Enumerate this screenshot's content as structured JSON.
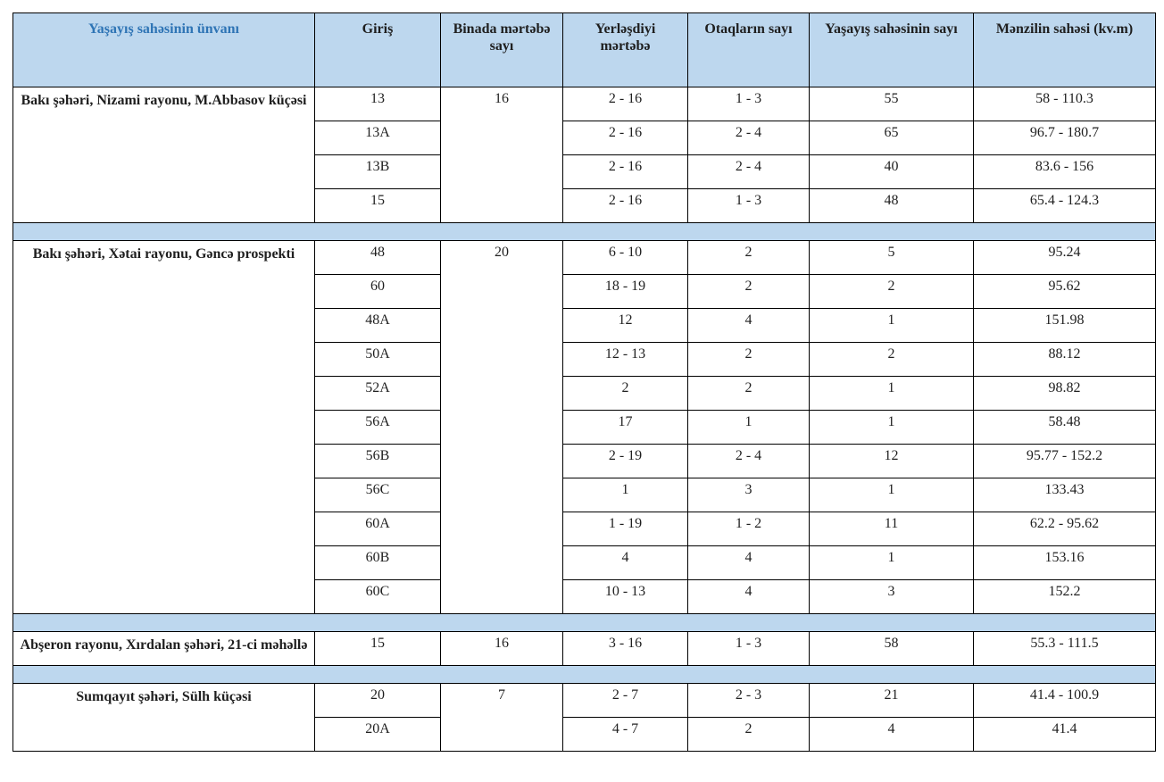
{
  "table": {
    "headers": [
      {
        "label": "Yaşayış sahəsinin ünvanı",
        "accent": true
      },
      {
        "label": "Giriş",
        "accent": false
      },
      {
        "label": "Binada mərtəbə sayı",
        "accent": false
      },
      {
        "label": "Yerləşdiyi mərtəbə",
        "accent": false
      },
      {
        "label": "Otaqların sayı",
        "accent": false
      },
      {
        "label": "Yaşayış sahəsinin sayı",
        "accent": false
      },
      {
        "label": "Mənzilin sahəsi (kv.m)",
        "accent": false
      }
    ],
    "groups": [
      {
        "address": "Bakı şəhəri, Nizami rayonu, M.Abbasov küçəsi",
        "building_floors": "16",
        "rows": [
          {
            "entrance": "13",
            "floors": "2 - 16",
            "rooms": "1 - 3",
            "units": "55",
            "area": "58 - 110.3"
          },
          {
            "entrance": "13A",
            "floors": "2 - 16",
            "rooms": "2 - 4",
            "units": "65",
            "area": "96.7 - 180.7"
          },
          {
            "entrance": "13B",
            "floors": "2 - 16",
            "rooms": "2 - 4",
            "units": "40",
            "area": "83.6 - 156"
          },
          {
            "entrance": "15",
            "floors": "2 - 16",
            "rooms": "1 - 3",
            "units": "48",
            "area": "65.4 - 124.3"
          }
        ]
      },
      {
        "address": "Bakı şəhəri, Xətai rayonu, Gəncə prospekti",
        "building_floors": "20",
        "rows": [
          {
            "entrance": "48",
            "floors": "6 - 10",
            "rooms": "2",
            "units": "5",
            "area": "95.24"
          },
          {
            "entrance": "60",
            "floors": "18 - 19",
            "rooms": "2",
            "units": "2",
            "area": "95.62"
          },
          {
            "entrance": "48A",
            "floors": "12",
            "rooms": "4",
            "units": "1",
            "area": "151.98"
          },
          {
            "entrance": "50A",
            "floors": "12 - 13",
            "rooms": "2",
            "units": "2",
            "area": "88.12"
          },
          {
            "entrance": "52A",
            "floors": "2",
            "rooms": "2",
            "units": "1",
            "area": "98.82"
          },
          {
            "entrance": "56A",
            "floors": "17",
            "rooms": "1",
            "units": "1",
            "area": "58.48"
          },
          {
            "entrance": "56B",
            "floors": "2 - 19",
            "rooms": "2 - 4",
            "units": "12",
            "area": "95.77 - 152.2"
          },
          {
            "entrance": "56C",
            "floors": "1",
            "rooms": "3",
            "units": "1",
            "area": "133.43"
          },
          {
            "entrance": "60A",
            "floors": "1 - 19",
            "rooms": "1 - 2",
            "units": "11",
            "area": "62.2 - 95.62"
          },
          {
            "entrance": "60B",
            "floors": "4",
            "rooms": "4",
            "units": "1",
            "area": "153.16"
          },
          {
            "entrance": "60C",
            "floors": "10 - 13",
            "rooms": "4",
            "units": "3",
            "area": "152.2"
          }
        ]
      },
      {
        "address": "Abşeron rayonu, Xırdalan şəhəri, 21-ci məhəllə",
        "building_floors": "16",
        "rows": [
          {
            "entrance": "15",
            "floors": "3 - 16",
            "rooms": "1 - 3",
            "units": "58",
            "area": "55.3 - 111.5"
          }
        ]
      },
      {
        "address": "Sumqayıt şəhəri, Sülh küçəsi",
        "building_floors": "7",
        "rows": [
          {
            "entrance": "20",
            "floors": "2 - 7",
            "rooms": "2 - 3",
            "units": "21",
            "area": "41.4 - 100.9"
          },
          {
            "entrance": "20A",
            "floors": "4 - 7",
            "rooms": "2",
            "units": "4",
            "area": "41.4"
          }
        ]
      }
    ],
    "colors": {
      "header_bg": "#bdd7ee",
      "accent_text": "#2e74b5",
      "border": "#000000",
      "text": "#1f1f1f"
    }
  }
}
